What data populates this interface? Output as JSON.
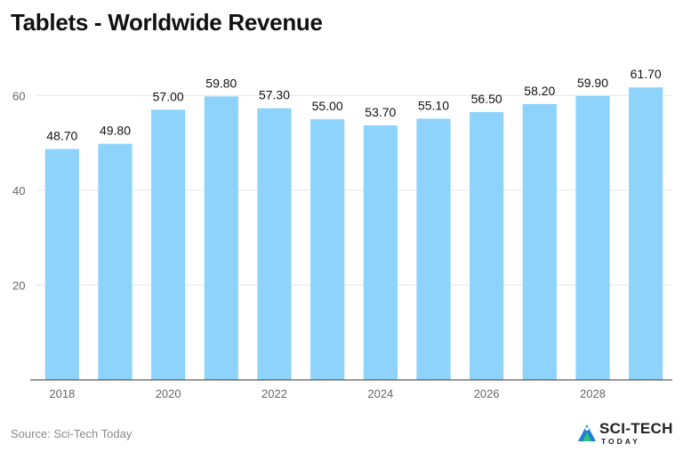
{
  "title": "Tablets - Worldwide Revenue",
  "source": "Source: Sci-Tech Today",
  "logo": {
    "main": "SCI-TECH",
    "sub": "TODAY",
    "icon": "sci-tech-logo-icon"
  },
  "colors": {
    "bar": "#8dd3fb",
    "grid": "#e6e6e6",
    "axis": "#333333",
    "tick": "#666666",
    "label": "#111111"
  },
  "chart_data": {
    "type": "bar",
    "categories": [
      "2018",
      "2019",
      "2020",
      "2021",
      "2022",
      "2023",
      "2024",
      "2025",
      "2026",
      "2027",
      "2028",
      "2029"
    ],
    "values": [
      48.7,
      49.8,
      57.0,
      59.8,
      57.3,
      55.0,
      53.7,
      55.1,
      56.5,
      58.2,
      59.9,
      61.7
    ],
    "value_labels": [
      "48.70",
      "49.80",
      "57.00",
      "59.80",
      "57.30",
      "55.00",
      "53.70",
      "55.10",
      "56.50",
      "58.20",
      "59.90",
      "61.70"
    ],
    "x_tick_labels": [
      "2018",
      "2020",
      "2022",
      "2024",
      "2026",
      "2028"
    ],
    "y_ticks": [
      20,
      40,
      60
    ],
    "ylim": [
      0,
      67
    ],
    "grid": true,
    "legend": "none"
  }
}
